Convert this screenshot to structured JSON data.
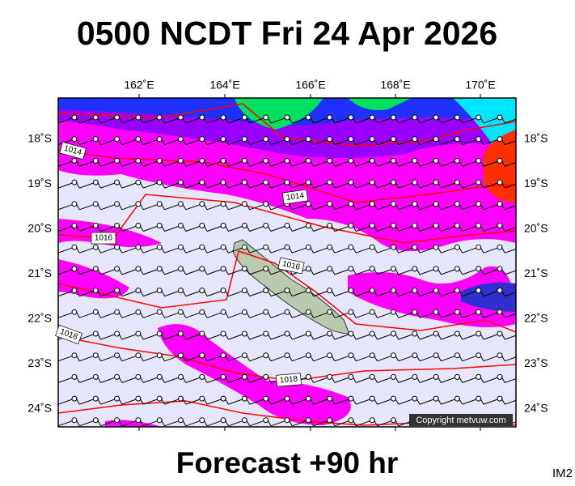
{
  "title": "0500 NCDT Fri 24 Apr 2026",
  "footer": "Forecast +90 hr",
  "corner_label": "IM2",
  "copyright": "Copyright metvuw.com",
  "map": {
    "lon_labels": [
      "162˚E",
      "164˚E",
      "166˚E",
      "168˚E",
      "170˚E"
    ],
    "lat_labels": [
      "18˚S",
      "19˚S",
      "20˚S",
      "21˚S",
      "22˚S",
      "23˚S",
      "24˚S"
    ],
    "isobar_labels": [
      "1014",
      "1014",
      "1016",
      "1016",
      "1018",
      "1018"
    ]
  }
}
